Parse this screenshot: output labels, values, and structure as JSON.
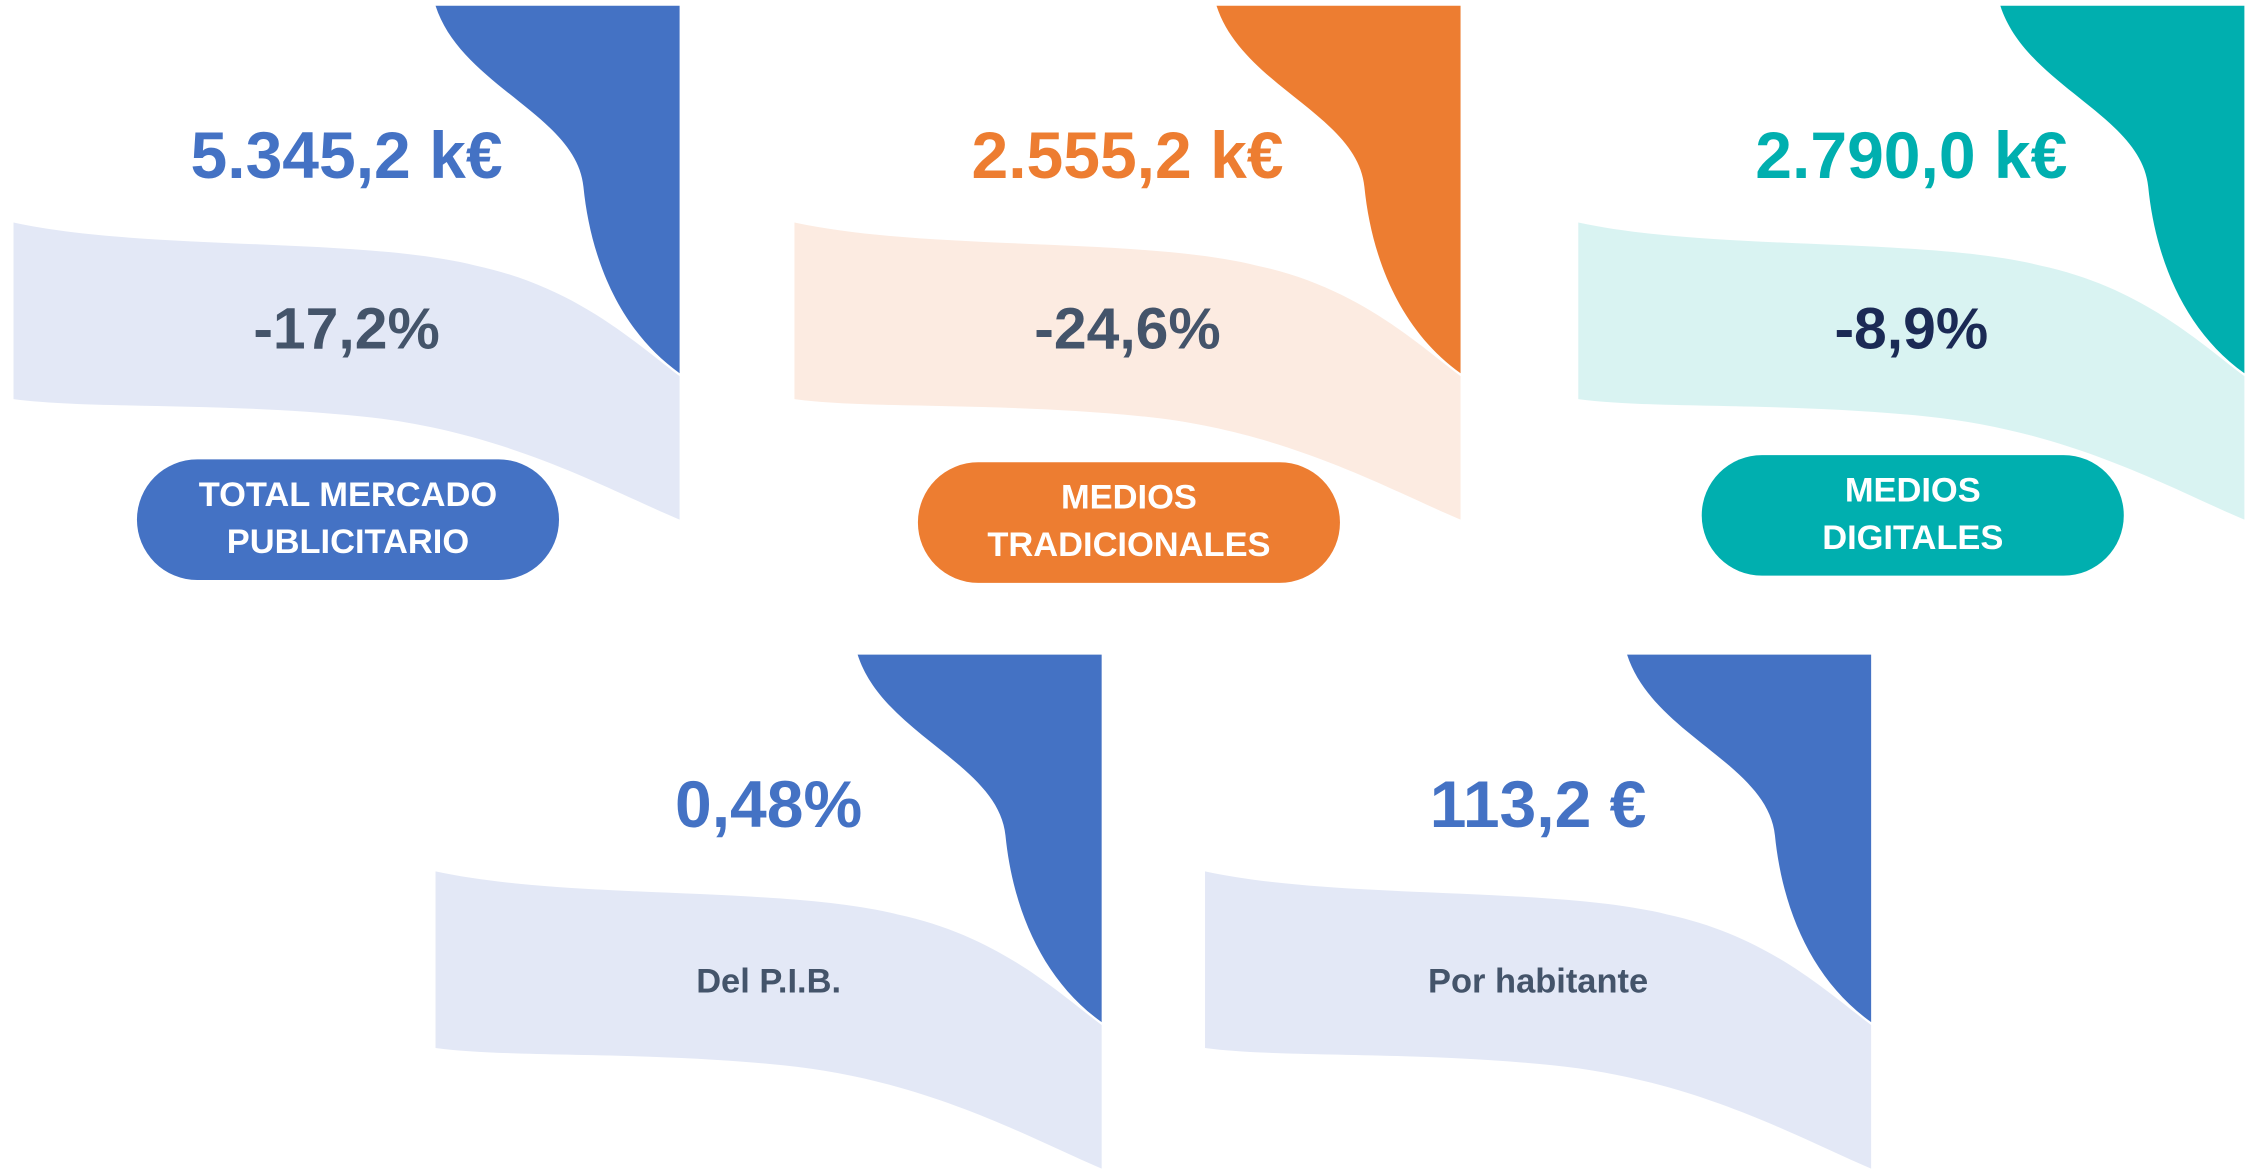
{
  "top_cards": [
    {
      "value": "5.345,2 k€",
      "change": "-17,2%",
      "label": [
        "TOTAL MERCADO",
        "PUBLICITARIO"
      ],
      "color": "#4472c4",
      "light": "#e3e8f6",
      "change_color": "#44546a"
    },
    {
      "value": "2.555,2 k€",
      "change": "-24,6%",
      "label": [
        "MEDIOS",
        "TRADICIONALES"
      ],
      "color": "#ed7d31",
      "light": "#fcebe1",
      "change_color": "#44546a"
    },
    {
      "value": "2.790,0 k€",
      "change": "-8,9%",
      "label": [
        "MEDIOS",
        "DIGITALES"
      ],
      "color": "#00afaf",
      "light": "#d9f3f2",
      "change_color": "#1b2a55"
    }
  ],
  "bottom_cards": [
    {
      "value": "0,48%",
      "label": "Del P.I.B.",
      "color": "#4472c4",
      "light": "#e3e8f6"
    },
    {
      "value": "113,2 €",
      "label": "Por habitante",
      "color": "#4472c4",
      "light": "#e3e8f6"
    }
  ]
}
